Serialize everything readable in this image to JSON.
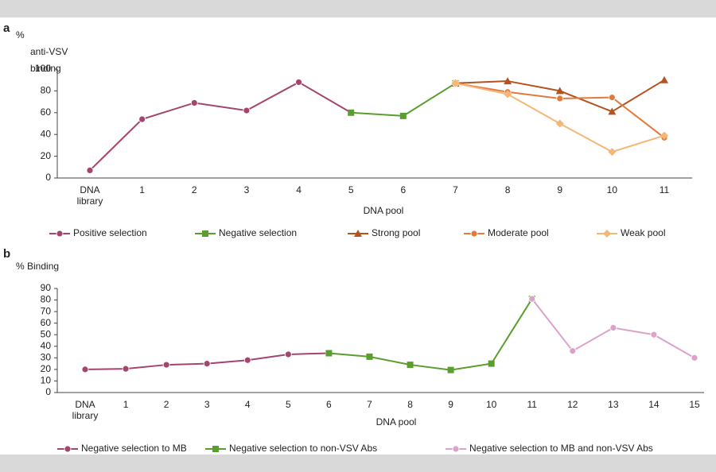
{
  "chart_data": [
    {
      "type": "line",
      "panel_label": "a",
      "y_label": "% anti-VSV binding",
      "x_label": "DNA pool",
      "categories": [
        "DNA library",
        "1",
        "2",
        "3",
        "4",
        "5",
        "6",
        "7",
        "8",
        "9",
        "10",
        "11"
      ],
      "ylim": [
        0,
        100
      ],
      "yticks": [
        0,
        20,
        40,
        60,
        80,
        100
      ],
      "series": [
        {
          "name": "Positive selection",
          "color": "#a3456e",
          "marker": "circle",
          "values": [
            7,
            54,
            69,
            62,
            88,
            60,
            null,
            null,
            null,
            null,
            null,
            null
          ]
        },
        {
          "name": "Negative selection",
          "color": "#5a9e2f",
          "marker": "square",
          "values": [
            null,
            null,
            null,
            null,
            null,
            60,
            57,
            87,
            null,
            null,
            null,
            null
          ]
        },
        {
          "name": "Strong pool",
          "color": "#b4531f",
          "marker": "triangle",
          "values": [
            null,
            null,
            null,
            null,
            null,
            null,
            null,
            87,
            89,
            80,
            61,
            90
          ]
        },
        {
          "name": "Moderate pool",
          "color": "#e27a3c",
          "marker": "circle",
          "values": [
            null,
            null,
            null,
            null,
            null,
            null,
            null,
            87,
            79,
            73,
            74,
            37
          ]
        },
        {
          "name": "Weak pool",
          "color": "#f6b677",
          "marker": "diamond",
          "values": [
            null,
            null,
            null,
            null,
            null,
            null,
            null,
            87,
            77,
            50,
            24,
            39
          ]
        }
      ]
    },
    {
      "type": "line",
      "panel_label": "b",
      "y_label": "% Binding",
      "x_label": "DNA pool",
      "categories": [
        "DNA library",
        "1",
        "2",
        "3",
        "4",
        "5",
        "6",
        "7",
        "8",
        "9",
        "10",
        "11",
        "12",
        "13",
        "14",
        "15"
      ],
      "ylim": [
        0,
        90
      ],
      "yticks": [
        0,
        10,
        20,
        30,
        40,
        50,
        60,
        70,
        80,
        90
      ],
      "series": [
        {
          "name": "Negative selection to MB",
          "color": "#a3456e",
          "marker": "circle",
          "values": [
            20,
            20.5,
            24,
            25,
            28,
            33,
            34,
            null,
            null,
            null,
            null,
            null,
            null,
            null,
            null,
            null
          ]
        },
        {
          "name": "Negative selection to non-VSV Abs",
          "color": "#5a9e2f",
          "marker": "square",
          "values": [
            null,
            null,
            null,
            null,
            null,
            null,
            34,
            31,
            24,
            19.5,
            25,
            81,
            null,
            null,
            null,
            null
          ]
        },
        {
          "name": "Negative selection to MB and non-VSV Abs",
          "color": "#dba3c9",
          "marker": "circle",
          "values": [
            null,
            null,
            null,
            null,
            null,
            null,
            null,
            null,
            null,
            null,
            null,
            81,
            36,
            56,
            50,
            30
          ]
        }
      ]
    }
  ]
}
